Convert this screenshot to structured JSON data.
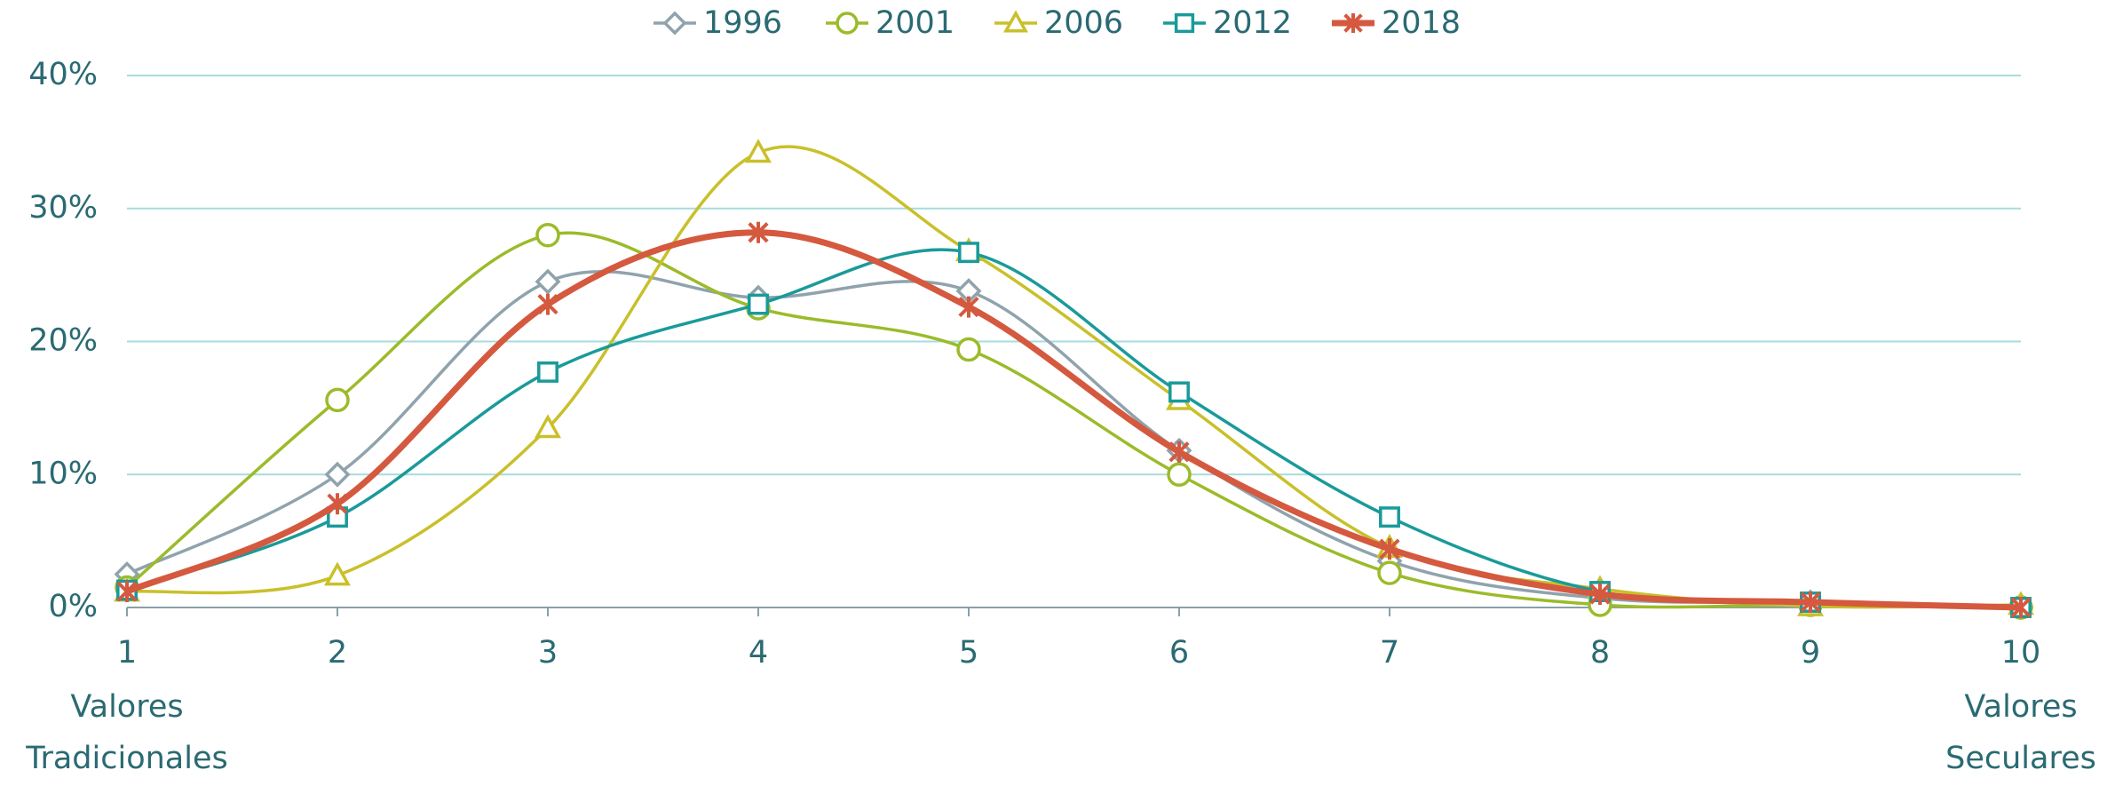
{
  "chart_data": {
    "type": "line",
    "x": [
      1,
      2,
      3,
      4,
      5,
      6,
      7,
      8,
      9,
      10
    ],
    "xlim": [
      1,
      10
    ],
    "xticks": [
      1,
      2,
      3,
      4,
      5,
      6,
      7,
      8,
      9,
      10
    ],
    "ylim": [
      0,
      40
    ],
    "yticks": [
      {
        "value": 0,
        "label": "0%"
      },
      {
        "value": 10,
        "label": "10%"
      },
      {
        "value": 20,
        "label": "20%"
      },
      {
        "value": 30,
        "label": "30%"
      },
      {
        "value": 40,
        "label": "40%"
      }
    ],
    "grid": true,
    "smooth": true,
    "legend": "top",
    "series": [
      {
        "name": "1996",
        "color": "#8fa3ad",
        "marker": "diamond",
        "values": [
          2.5,
          10,
          24.5,
          23.3,
          23.8,
          11.8,
          3.5,
          0.7,
          0.4,
          0
        ]
      },
      {
        "name": "2001",
        "color": "#9bbb2a",
        "marker": "circle",
        "values": [
          1.5,
          15.6,
          28,
          22.5,
          19.4,
          10,
          2.6,
          0.2,
          0.2,
          0
        ]
      },
      {
        "name": "2006",
        "color": "#c9c02a",
        "marker": "triangle",
        "values": [
          1.2,
          2.4,
          13.5,
          34.2,
          26.8,
          15.6,
          4.5,
          1.4,
          0.1,
          0.2
        ]
      },
      {
        "name": "2012",
        "color": "#1a9a9a",
        "marker": "square",
        "values": [
          1.3,
          6.8,
          17.7,
          22.8,
          26.7,
          16.2,
          6.8,
          1.2,
          0.4,
          0
        ]
      },
      {
        "name": "2018",
        "color": "#d4593f",
        "marker": "asterisk",
        "width": 7,
        "values": [
          1.2,
          7.8,
          22.8,
          28.2,
          22.6,
          11.7,
          4.4,
          1.0,
          0.4,
          0
        ]
      }
    ],
    "x_annotations": [
      {
        "x": 1,
        "lines": [
          "Valores",
          "Tradicionales"
        ]
      },
      {
        "x": 10,
        "lines": [
          "Valores",
          "Seculares"
        ]
      }
    ]
  }
}
